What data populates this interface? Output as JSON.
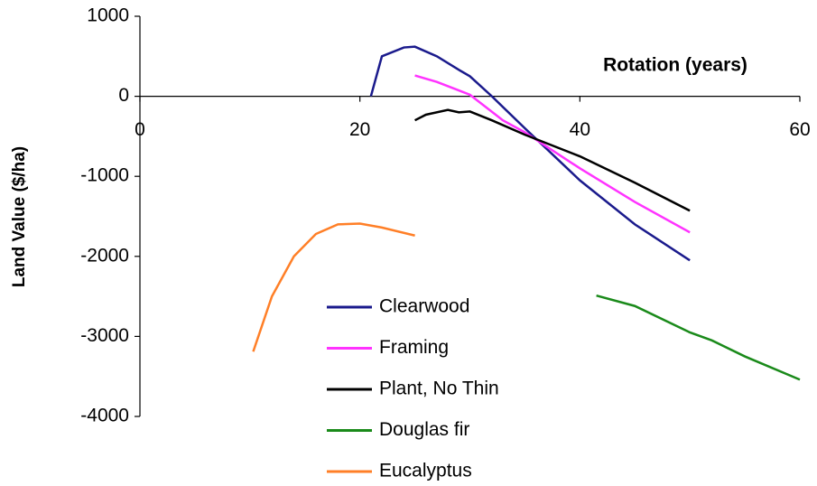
{
  "chart_data": {
    "type": "line",
    "y_label": "Land Value ($/ha)",
    "x_label": "Rotation (years)",
    "xlim": [
      0,
      60
    ],
    "xticks": [
      0,
      20,
      40,
      60
    ],
    "ylim": [
      -4000,
      1000
    ],
    "yticks": [
      1000,
      0,
      -1000,
      -2000,
      -3000,
      -4000
    ],
    "series": [
      {
        "name": "Clearwood",
        "color": "#1a1a8c",
        "x": [
          21,
          22,
          24,
          25,
          27,
          29,
          30,
          32,
          35,
          40,
          45,
          50
        ],
        "values": [
          0,
          500,
          610,
          620,
          500,
          330,
          250,
          0,
          -400,
          -1050,
          -1600,
          -2050
        ]
      },
      {
        "name": "Framing",
        "color": "#ff33ff",
        "x": [
          25,
          27,
          30,
          33,
          35,
          40,
          45,
          50
        ],
        "values": [
          260,
          180,
          20,
          -300,
          -450,
          -900,
          -1320,
          -1700
        ]
      },
      {
        "name": "Plant, No Thin",
        "color": "#000000",
        "x": [
          25,
          26,
          28,
          29,
          30,
          32,
          35,
          40,
          45,
          50
        ],
        "values": [
          -300,
          -230,
          -170,
          -200,
          -190,
          -300,
          -480,
          -750,
          -1080,
          -1430
        ]
      },
      {
        "name": "Douglas fir",
        "color": "#1a8a1a",
        "x": [
          41.5,
          45,
          50,
          52,
          55,
          60
        ],
        "values": [
          -2490,
          -2620,
          -2950,
          -3050,
          -3250,
          -3540
        ]
      },
      {
        "name": "Eucalyptus",
        "color": "#ff7f27",
        "x": [
          10.3,
          12,
          14,
          16,
          18,
          20,
          22,
          25
        ],
        "values": [
          -3190,
          -2500,
          -2000,
          -1720,
          -1600,
          -1590,
          -1640,
          -1740
        ]
      }
    ]
  }
}
